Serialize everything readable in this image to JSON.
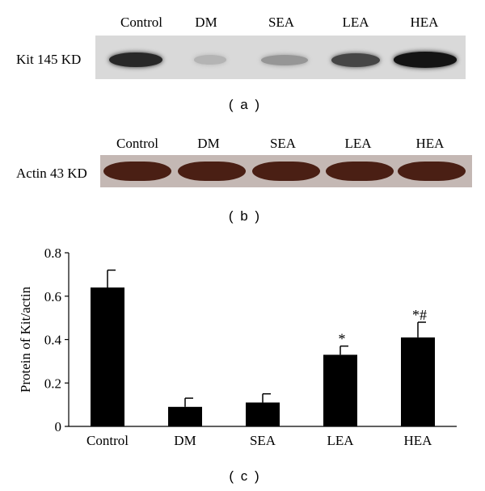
{
  "panel_a": {
    "label": "( a )",
    "row_label": "Kit 145 KD",
    "lanes": [
      "Control",
      "DM",
      "SEA",
      "LEA",
      "HEA"
    ],
    "band_intensity": [
      0.85,
      0.15,
      0.3,
      0.7,
      0.95
    ]
  },
  "panel_b": {
    "label": "( b )",
    "row_label": "Actin 43 KD",
    "lanes": [
      "Control",
      "DM",
      "SEA",
      "LEA",
      "HEA"
    ],
    "band_color": "#4a1f14"
  },
  "panel_c": {
    "label": "( c )"
  },
  "chart_data": {
    "type": "bar",
    "categories": [
      "Control",
      "DM",
      "SEA",
      "LEA",
      "HEA"
    ],
    "values": [
      0.64,
      0.09,
      0.11,
      0.33,
      0.41
    ],
    "errors": [
      0.08,
      0.04,
      0.04,
      0.04,
      0.07
    ],
    "annotations": [
      "",
      "",
      "",
      "*",
      "*#"
    ],
    "ylabel": "Protein of Kit/actin",
    "xlabel": "",
    "ylim": [
      0,
      0.8
    ],
    "yticks": [
      0,
      0.2,
      0.4,
      0.6,
      0.8
    ],
    "ytick_labels": [
      "0",
      "0.2",
      "0.4",
      "0.6",
      "0.8"
    ],
    "bar_color": "#000000"
  }
}
